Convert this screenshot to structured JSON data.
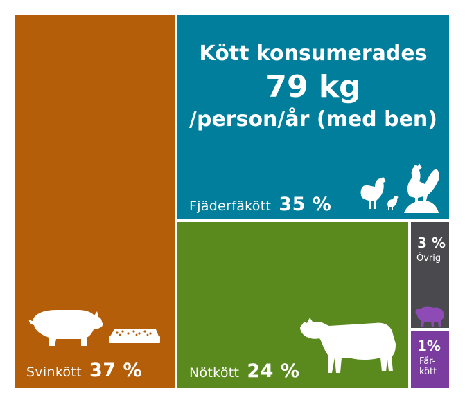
{
  "chart_data": {
    "type": "treemap",
    "title_line1": "Kött konsumerades",
    "title_line2": "79 kg",
    "title_line3": "/person/år (med ben)",
    "segments": [
      {
        "name": "Svinkött",
        "percent_label": "37 %",
        "value": 37,
        "color": "#b55e0a",
        "icon": "pig-with-feed-icon"
      },
      {
        "name": "Fjäderfäkött",
        "percent_label": "35 %",
        "value": 35,
        "color": "#007e9c",
        "icon": "chickens-icon"
      },
      {
        "name": "Nötkött",
        "percent_label": "24 %",
        "value": 24,
        "color": "#5a8a1e",
        "icon": "cow-icon"
      },
      {
        "name": "Övrig",
        "percent_label": "3 %",
        "value": 3,
        "color": "#4a4a4e",
        "icon": ""
      },
      {
        "name_line1": "Får-",
        "name_line2": "kött",
        "percent_label": "1%",
        "value": 1,
        "color": "#7a3c9e",
        "icon": "sheep-icon"
      }
    ]
  }
}
